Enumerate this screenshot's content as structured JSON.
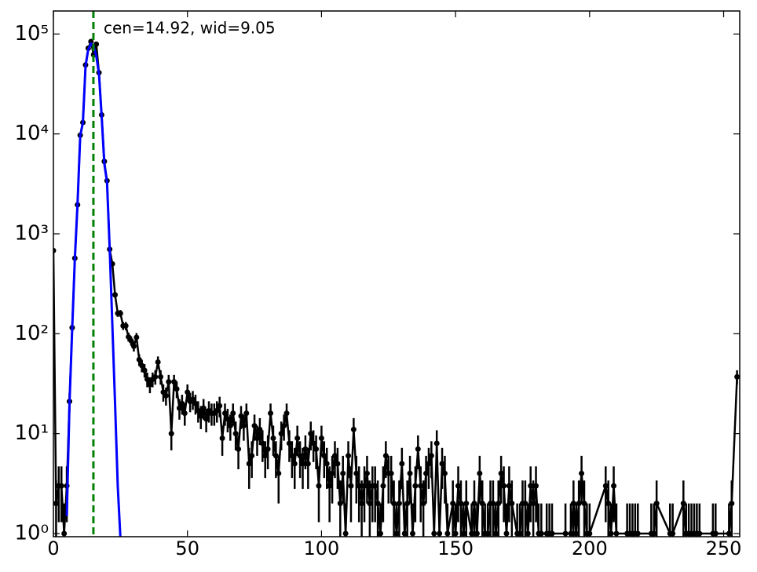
{
  "chart_data": {
    "type": "errorbar",
    "log_y": true,
    "xlim": [
      0,
      256
    ],
    "ylim": [
      0.93,
      170000
    ],
    "xticks": [
      0,
      50,
      100,
      150,
      200,
      250
    ],
    "yticks": [
      {
        "value": 1,
        "label": "10⁰"
      },
      {
        "value": 10,
        "label": "10¹"
      },
      {
        "value": 100,
        "label": "10²"
      },
      {
        "value": 1000,
        "label": "10³"
      },
      {
        "value": 10000,
        "label": "10⁴"
      },
      {
        "value": 100000,
        "label": "10⁵"
      }
    ],
    "series": [
      {
        "color": "#000000",
        "style": "points",
        "x": [
          0,
          1,
          2,
          3,
          4,
          5,
          6,
          7,
          8,
          9,
          10,
          11,
          12,
          13,
          14,
          15,
          16,
          17,
          18,
          19,
          20,
          21,
          22,
          23,
          24,
          25,
          26,
          27,
          28,
          29,
          30,
          31,
          32,
          33,
          34,
          35,
          36,
          37,
          38,
          39,
          40,
          41,
          42,
          43,
          44,
          45,
          46,
          47,
          48,
          49,
          50,
          51,
          52,
          53,
          54,
          55,
          56,
          57,
          58,
          59,
          60,
          61,
          62,
          63,
          64,
          65,
          66,
          67,
          68,
          69,
          70,
          71,
          72,
          73,
          74,
          75,
          76,
          77,
          78,
          79,
          80,
          81,
          82,
          83,
          84,
          85,
          86,
          87,
          88,
          89,
          90,
          91,
          92,
          93,
          94,
          95,
          96,
          97,
          98,
          99,
          100,
          101,
          102,
          103,
          104,
          105,
          106,
          107,
          108,
          109,
          110,
          111,
          112,
          113,
          114,
          115,
          116,
          117,
          118,
          119,
          120,
          121,
          122,
          123,
          124,
          125,
          126,
          127,
          128,
          129,
          130,
          131,
          132,
          133,
          134,
          135,
          136,
          137,
          138,
          139,
          140,
          141,
          142,
          143,
          144,
          145,
          146,
          147,
          149,
          150,
          151,
          152,
          153,
          154,
          156,
          157,
          158,
          159,
          160,
          161,
          162,
          163,
          164,
          165,
          166,
          167,
          168,
          169,
          170,
          171,
          173,
          174,
          175,
          176,
          177,
          178,
          179,
          180,
          181,
          182,
          184,
          185,
          186,
          191,
          193,
          194,
          195,
          196,
          197,
          198,
          199,
          200,
          206,
          207,
          208,
          209,
          210,
          214,
          215,
          216,
          217,
          218,
          223,
          224,
          225,
          230,
          231,
          235,
          236,
          237,
          238,
          239,
          240,
          241,
          246,
          247,
          252,
          253,
          255
        ],
        "values": [
          680,
          2,
          3,
          3,
          1,
          3,
          21,
          115,
          570,
          1950,
          9700,
          13000,
          49000,
          72000,
          84000,
          62000,
          79000,
          41000,
          15500,
          5300,
          3400,
          700,
          500,
          245,
          160,
          160,
          120,
          120,
          93,
          85,
          75,
          92,
          55,
          48,
          43,
          35,
          31,
          35,
          37,
          52,
          37,
          26,
          24,
          33,
          10,
          33,
          28,
          18,
          20,
          16,
          26,
          21,
          22,
          20,
          17,
          15,
          18,
          14,
          17,
          16,
          16,
          17,
          19,
          9,
          16,
          14,
          12,
          16,
          10,
          7,
          15,
          12,
          16,
          5,
          6,
          12,
          9,
          11,
          8,
          6,
          7,
          16,
          9,
          6,
          4,
          10,
          12,
          16,
          8,
          6,
          5,
          9,
          6,
          5,
          7,
          5,
          10,
          8,
          7,
          3,
          9,
          6,
          5,
          3,
          4,
          6,
          5,
          2,
          4,
          1,
          6,
          3,
          11,
          4,
          3,
          2,
          3,
          4,
          2,
          3,
          3,
          2,
          1,
          3,
          6,
          4,
          4,
          2,
          1,
          2,
          5,
          1,
          2,
          4,
          1,
          3,
          7,
          3,
          2,
          4,
          5,
          6,
          1,
          8,
          1,
          5,
          4,
          1,
          2,
          1,
          3,
          2,
          1,
          2,
          1,
          2,
          1,
          4,
          2,
          1,
          1,
          2,
          2,
          1,
          2,
          4,
          3,
          1,
          3,
          2,
          1,
          1,
          2,
          2,
          1,
          3,
          2,
          3,
          1,
          1,
          1,
          1,
          1,
          1,
          1,
          2,
          1,
          2,
          4,
          2,
          1,
          1,
          3,
          2,
          1,
          3,
          1,
          1,
          1,
          1,
          1,
          1,
          1,
          1,
          2,
          1,
          1,
          2,
          1,
          1,
          1,
          1,
          1,
          1,
          1,
          1,
          1,
          2,
          37
        ],
        "errors": [
          26,
          1.4,
          1.7,
          1.7,
          1,
          1.7,
          4.6,
          10.7,
          24,
          44,
          98,
          114,
          221,
          268,
          290,
          249,
          281,
          202,
          124,
          73,
          58,
          26,
          22,
          15.7,
          12.6,
          12.6,
          11,
          11,
          9.6,
          9.2,
          8.7,
          9.6,
          7.4,
          6.9,
          6.6,
          5.9,
          5.6,
          5.9,
          6.1,
          7.2,
          6.1,
          5.1,
          4.9,
          5.7,
          3.2,
          5.7,
          5.3,
          4.2,
          4.5,
          4,
          5.1,
          4.6,
          4.7,
          4.5,
          4.1,
          3.9,
          4.2,
          3.7,
          4.1,
          4,
          4,
          4.1,
          4.4,
          3,
          4,
          3.7,
          3.5,
          4,
          3.2,
          2.6,
          3.9,
          3.5,
          4,
          2.2,
          2.4,
          3.5,
          3,
          3.3,
          2.8,
          2.4,
          2.6,
          4,
          3,
          2.4,
          2,
          3.2,
          3.5,
          4,
          2.8,
          2.4,
          2.2,
          3,
          2.4,
          2.2,
          2.6,
          2.2,
          3.2,
          2.8,
          2.6,
          1.7,
          3,
          2.4,
          2.2,
          1.7,
          2,
          2.4,
          2.2,
          1.4,
          2,
          1,
          2.4,
          1.7,
          3.3,
          2,
          1.7,
          1.4,
          1.7,
          2,
          1.4,
          1.7,
          1.7,
          1.4,
          1,
          1.7,
          2.4,
          2,
          2,
          1.4,
          1,
          1.4,
          2.2,
          1,
          1.4,
          2,
          1,
          1.7,
          2.6,
          1.7,
          1.4,
          2,
          2.2,
          2.4,
          1,
          2.8,
          1,
          2.2,
          2,
          1,
          1.4,
          1,
          1.7,
          1.4,
          1,
          1.4,
          1,
          1.4,
          1,
          2,
          1.4,
          1,
          1,
          1.4,
          1.4,
          1,
          1.4,
          2,
          1.7,
          1,
          1.7,
          1.4,
          1,
          1,
          1.4,
          1.4,
          1,
          1.7,
          1.4,
          1.7,
          1,
          1,
          1,
          1,
          1,
          1,
          1,
          1.4,
          1,
          1.4,
          2,
          1.4,
          1,
          1,
          1.7,
          1.4,
          1,
          1.7,
          1,
          1,
          1,
          1,
          1,
          1,
          1,
          1,
          1.4,
          1,
          1,
          1.4,
          1,
          1,
          1,
          1,
          1,
          1,
          1,
          1,
          1,
          1.4,
          6.1
        ]
      },
      {
        "color": "#0000ff",
        "style": "line",
        "x": [
          5,
          6,
          7,
          8,
          9,
          10,
          11,
          12,
          13,
          14,
          15,
          16,
          17,
          18,
          19,
          20,
          21,
          22,
          23,
          24,
          25
        ],
        "values": [
          1.5,
          20,
          110,
          560,
          2000,
          9500,
          13000,
          48000,
          70000,
          80000,
          75000,
          60000,
          40000,
          15000,
          5000,
          3300,
          700,
          120,
          20,
          3,
          0.9
        ]
      }
    ],
    "vlines": [
      {
        "x": 14.92,
        "color": "#008000"
      }
    ],
    "annotation": "cen=14.92, wid=9.05",
    "annotation_color": "#008000"
  }
}
